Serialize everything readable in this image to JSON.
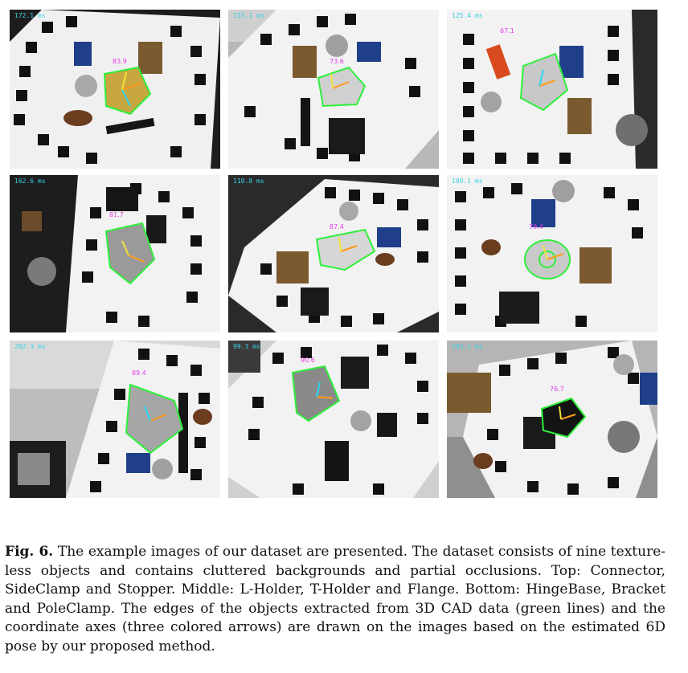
{
  "figure": {
    "label": "Fig. 6.",
    "caption": "The example images of our dataset are presented. The dataset consists of nine texture-less objects and contains cluttered backgrounds and partial occlusions. Top: Connector, SideClamp and Stopper. Middle: L-Holder, T-Holder and Flange. Bottom: HingeBase, Bracket and PoleClamp. The edges of the objects extracted from 3D CAD data (green lines) and the coordinate axes (three colored arrows) are drawn on the images based on the estimated 6D pose by our proposed method."
  },
  "tiles": [
    {
      "time": "172.1 ms",
      "score": "83.9"
    },
    {
      "time": "155.1 ms",
      "score": "73.6"
    },
    {
      "time": "125.4 ms",
      "score": "67.1"
    },
    {
      "time": "162.6 ms",
      "score": "81.7"
    },
    {
      "time": "110.8 ms",
      "score": "87.4"
    },
    {
      "time": "100.1 ms",
      "score": "79.4"
    },
    {
      "time": "202.3 ms",
      "score": "89.4"
    },
    {
      "time": "99.3 ms",
      "score": "90.6"
    },
    {
      "time": "103.1 ms",
      "score": "76.7"
    }
  ],
  "colors": {
    "edge_green": "#2df03a",
    "axis_orange": "#ff9a1a",
    "axis_yellow": "#f5e23a",
    "axis_cyan": "#29d7ef",
    "marker_black": "#111111",
    "paper_white": "#f2f2f2"
  }
}
